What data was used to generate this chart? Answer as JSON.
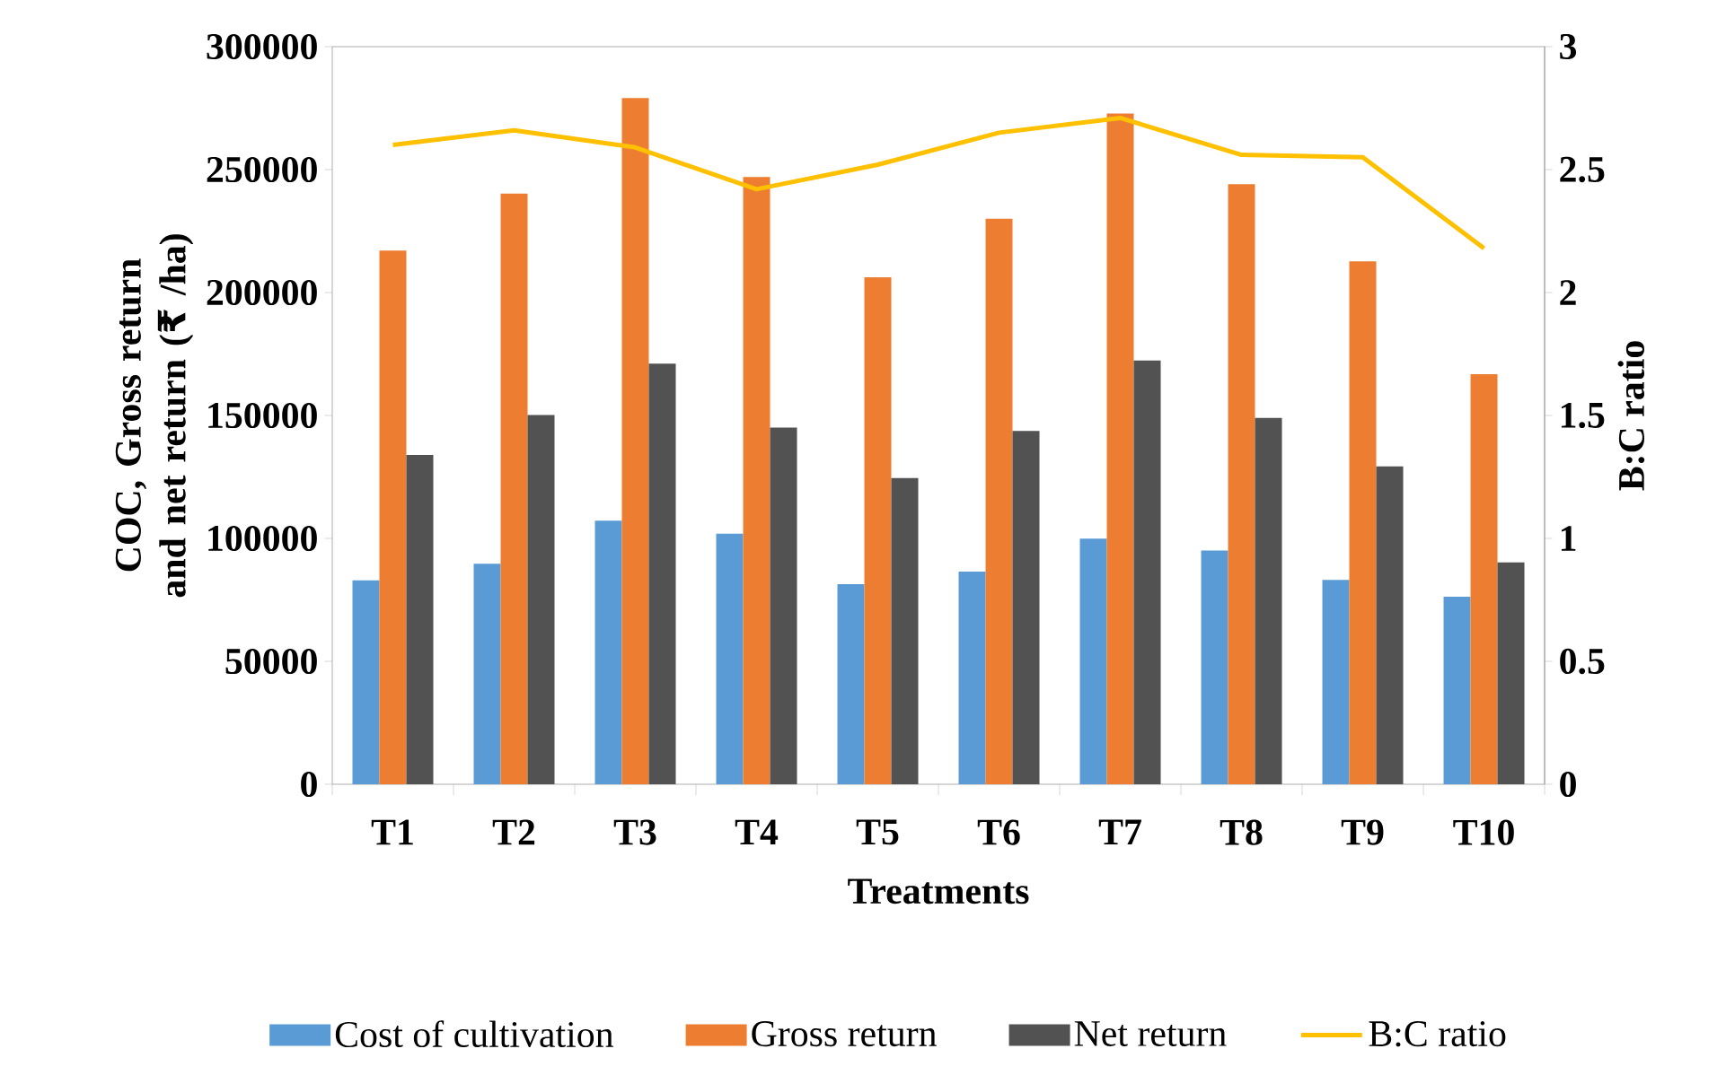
{
  "chart_data": {
    "type": "bar",
    "xlabel": "Treatments",
    "ylabel": "COC, Gross return and net return (₹ /ha)",
    "y2label": "B:C ratio",
    "categories": [
      "T1",
      "T2",
      "T3",
      "T4",
      "T5",
      "T6",
      "T7",
      "T8",
      "T9",
      "T10"
    ],
    "series": [
      {
        "name": "Cost of cultivation",
        "color": "#5b9bd5",
        "values": [
          82900,
          89700,
          107200,
          101900,
          81400,
          86500,
          99900,
          95100,
          83100,
          76300
        ]
      },
      {
        "name": "Gross return",
        "color": "#ed7d31",
        "values": [
          217100,
          240200,
          279100,
          247000,
          206200,
          230000,
          272800,
          244100,
          212700,
          166800
        ]
      },
      {
        "name": "Net return",
        "color": "#525252",
        "values": [
          133900,
          150200,
          171100,
          145100,
          124500,
          143700,
          172400,
          149000,
          129300,
          90200
        ]
      },
      {
        "name": "B:C ratio",
        "color": "#ffc000",
        "type": "line",
        "axis": "y2",
        "values": [
          2.6,
          2.66,
          2.59,
          2.42,
          2.52,
          2.65,
          2.71,
          2.56,
          2.55,
          2.18
        ]
      }
    ],
    "ylim": [
      0,
      300000
    ],
    "yticks": [
      0,
      50000,
      100000,
      150000,
      200000,
      250000,
      300000
    ],
    "y2lim": [
      0,
      3
    ],
    "y2ticks": [
      0,
      0.5,
      1,
      1.5,
      2,
      2.5,
      3
    ],
    "legend": "bottom",
    "grid": false,
    "marker": "none",
    "line_style": "solid"
  }
}
